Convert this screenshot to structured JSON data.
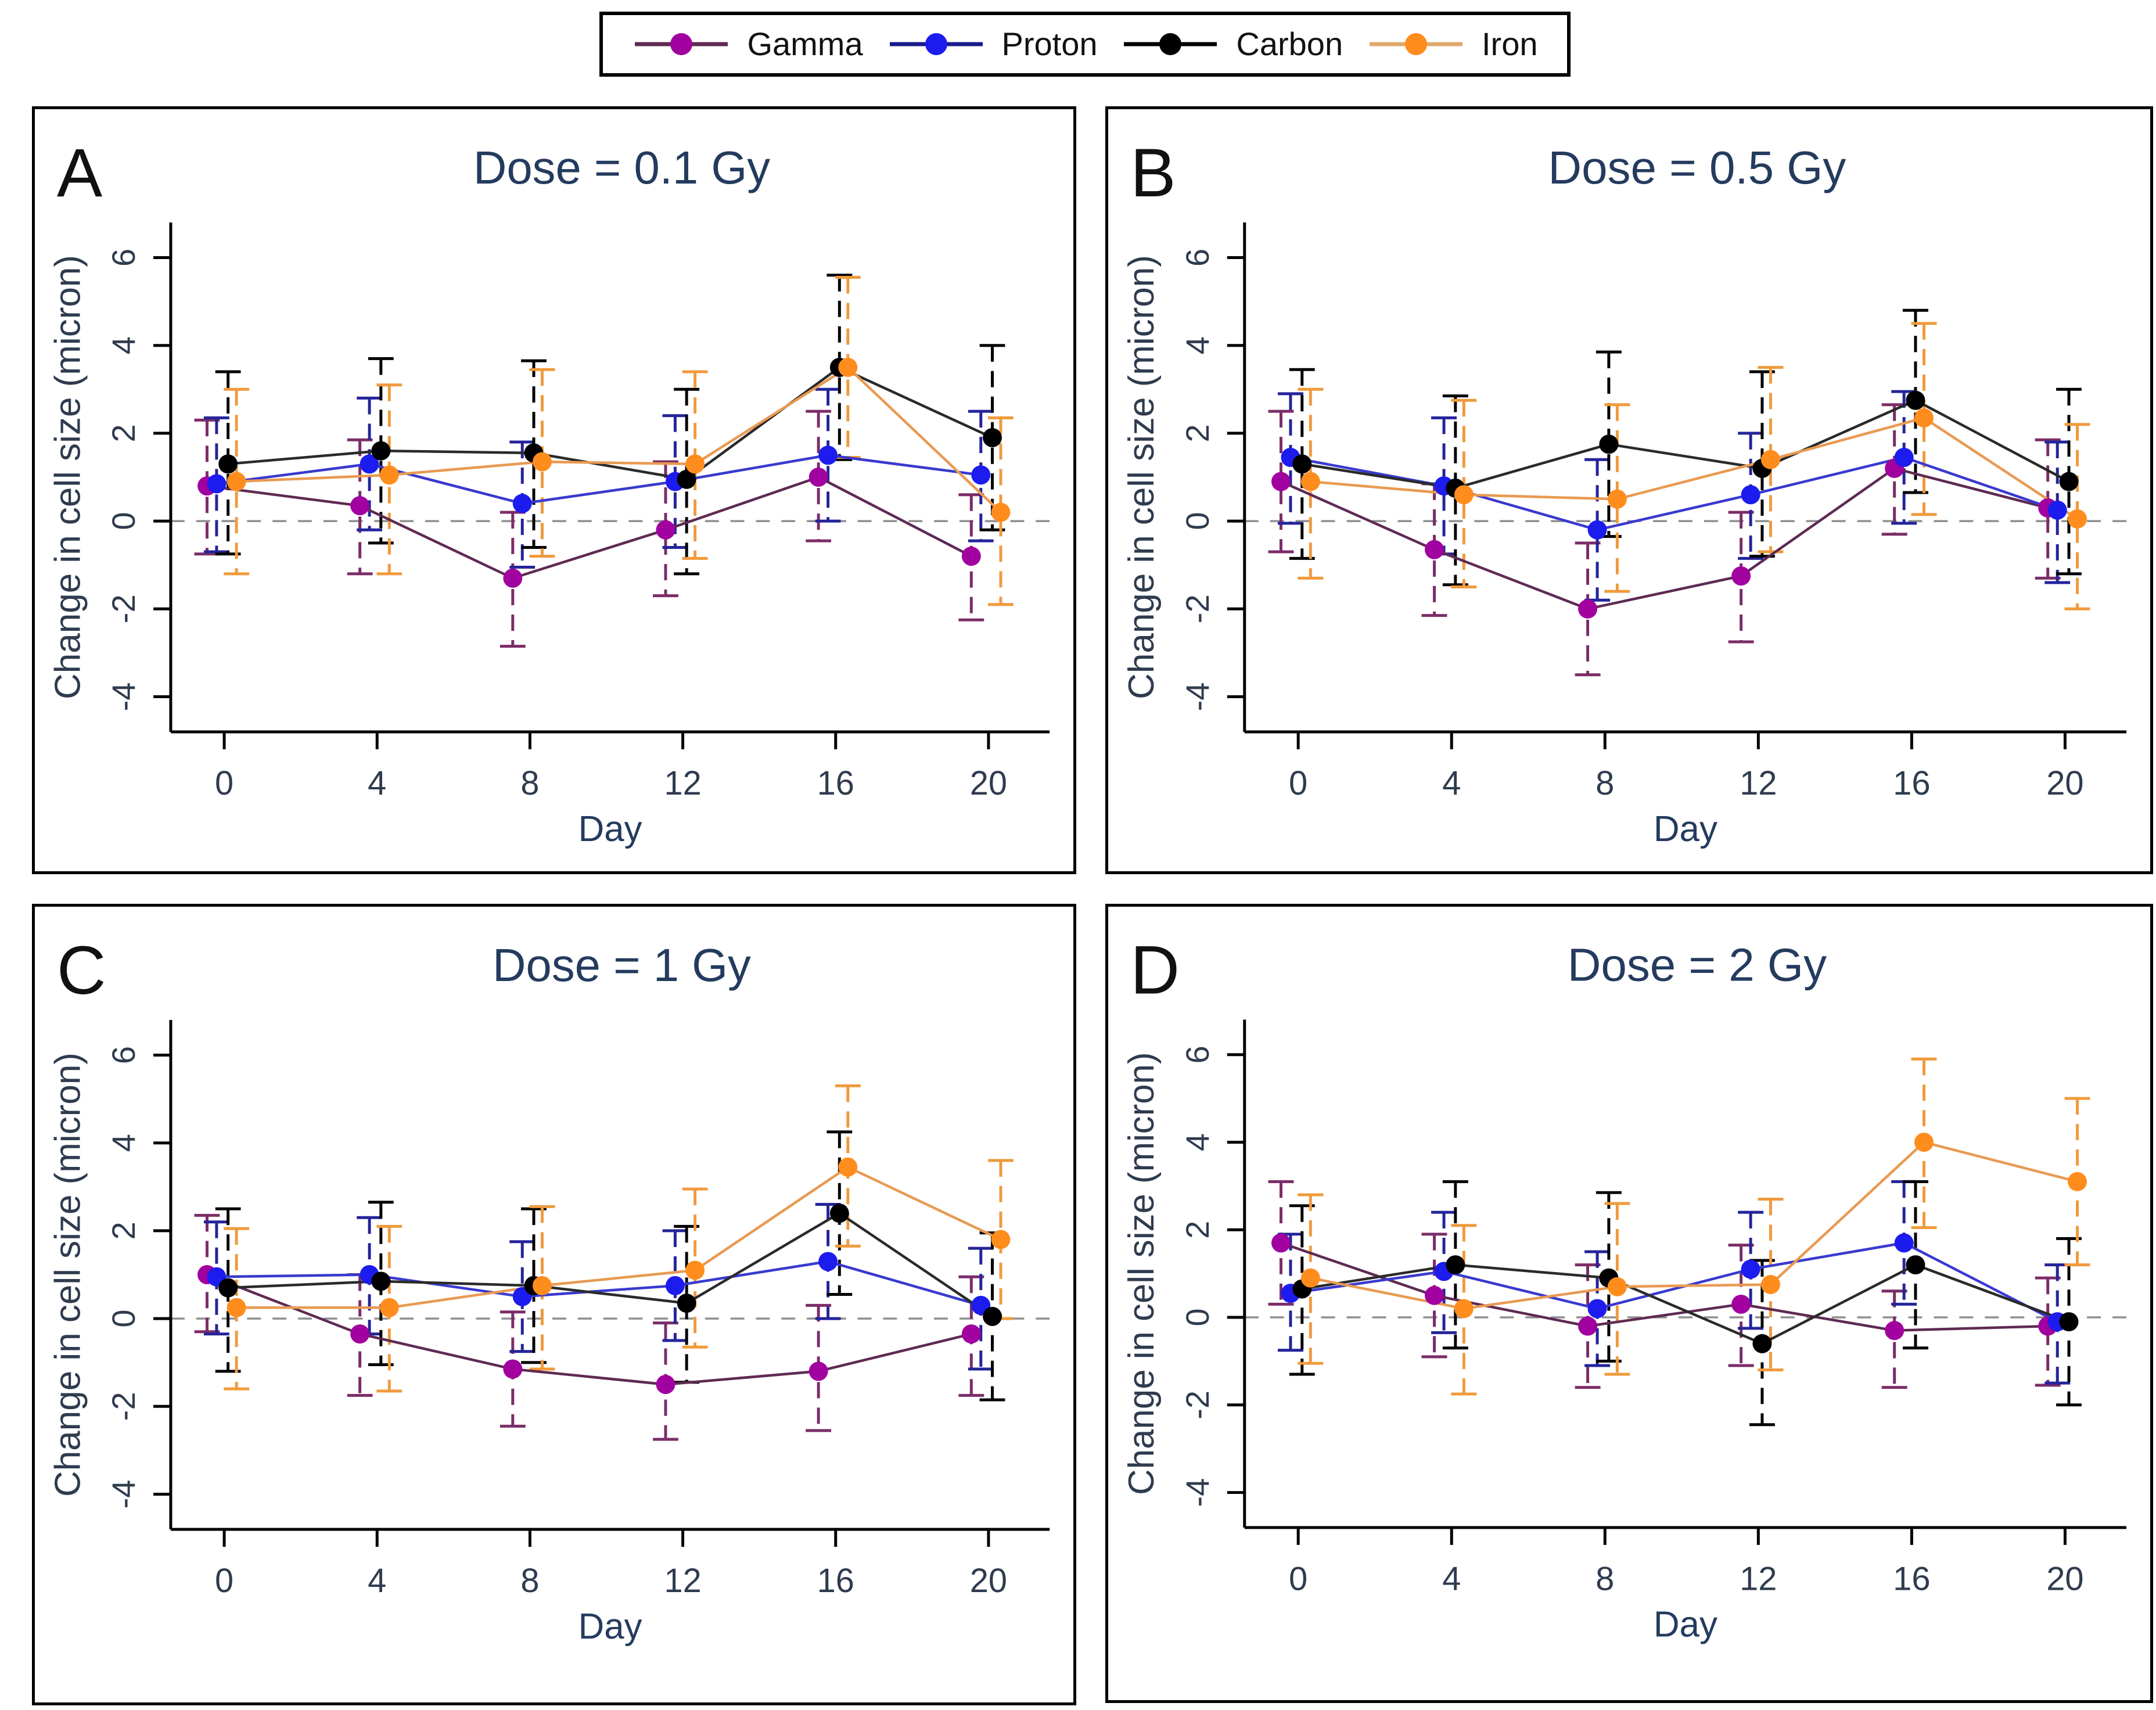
{
  "legend": {
    "items": [
      "Gamma",
      "Proton",
      "Carbon",
      "Iron"
    ]
  },
  "series_meta": [
    {
      "name": "Gamma",
      "marker_color": "#A1019E",
      "line_color": "#5E2A52",
      "error_color": "#7B2D68",
      "legend_line_color": "#5E2A52"
    },
    {
      "name": "Proton",
      "marker_color": "#1C1CEE",
      "line_color": "#3939CF",
      "error_color": "#24249B",
      "legend_line_color": "#1A1A8C"
    },
    {
      "name": "Carbon",
      "marker_color": "#000000",
      "line_color": "#2A2A2A",
      "error_color": "#000000",
      "legend_line_color": "#000000"
    },
    {
      "name": "Iron",
      "marker_color": "#FF8D1E",
      "line_color": "#E89A52",
      "error_color": "#F09A3C",
      "legend_line_color": "#E0A96D"
    }
  ],
  "style_colors": {
    "title_color": "#243B5E",
    "tick_label_color": "#2F3B4E",
    "axis_color": "#000000",
    "panel_letter_color": "#111111",
    "zero_line_color": "#8F8F8F"
  },
  "axes": {
    "xlabel": "Day",
    "ylabel": "Change  in  cell  size (micron)",
    "xticks": [
      0,
      4,
      8,
      12,
      16,
      20
    ],
    "yticks": [
      -4,
      -2,
      0,
      2,
      4,
      6
    ]
  },
  "chart_data": [
    {
      "type": "line",
      "letter": "A",
      "title": "Dose = 0.1 Gy",
      "xlabel": "Day",
      "ylabel": "Change  in  cell  size (micron)",
      "x": [
        0,
        4,
        8,
        12,
        16,
        20
      ],
      "ylim": [
        -4,
        6
      ],
      "grid": false,
      "legend_position": "top",
      "series": [
        {
          "name": "Gamma",
          "values": [
            0.8,
            0.35,
            -1.3,
            -0.2,
            1.0,
            -0.8
          ],
          "err_lo": [
            -0.75,
            -1.2,
            -2.85,
            -1.7,
            -0.45,
            -2.25
          ],
          "err_hi": [
            2.3,
            1.85,
            0.2,
            1.35,
            2.5,
            0.6
          ]
        },
        {
          "name": "Proton",
          "values": [
            0.85,
            1.3,
            0.4,
            0.9,
            1.5,
            1.05
          ],
          "err_lo": [
            -0.7,
            -0.2,
            -1.05,
            -0.6,
            0.0,
            -0.45
          ],
          "err_hi": [
            2.35,
            2.8,
            1.8,
            2.4,
            3.0,
            2.5
          ]
        },
        {
          "name": "Carbon",
          "values": [
            1.3,
            1.6,
            1.55,
            0.95,
            3.5,
            1.9
          ],
          "err_lo": [
            -0.75,
            -0.5,
            -0.6,
            -1.2,
            1.4,
            -0.2
          ],
          "err_hi": [
            3.4,
            3.7,
            3.65,
            3.0,
            5.6,
            4.0
          ]
        },
        {
          "name": "Iron",
          "values": [
            0.9,
            1.05,
            1.35,
            1.3,
            3.5,
            0.2
          ],
          "err_lo": [
            -1.2,
            -1.2,
            -0.8,
            -0.85,
            1.45,
            -1.9
          ],
          "err_hi": [
            3.0,
            3.1,
            3.45,
            3.4,
            5.55,
            2.35
          ]
        }
      ]
    },
    {
      "type": "line",
      "letter": "B",
      "title": "Dose = 0.5 Gy",
      "xlabel": "Day",
      "ylabel": "Change  in  cell  size (micron)",
      "x": [
        0,
        4,
        8,
        12,
        16,
        20
      ],
      "ylim": [
        -4,
        6
      ],
      "grid": false,
      "legend_position": "top",
      "series": [
        {
          "name": "Gamma",
          "values": [
            0.9,
            -0.65,
            -2.0,
            -1.25,
            1.2,
            0.3
          ],
          "err_lo": [
            -0.7,
            -2.15,
            -3.5,
            -2.75,
            -0.3,
            -1.3
          ],
          "err_hi": [
            2.5,
            0.85,
            -0.5,
            0.2,
            2.65,
            1.85
          ]
        },
        {
          "name": "Proton",
          "values": [
            1.45,
            0.8,
            -0.2,
            0.6,
            1.45,
            0.25
          ],
          "err_lo": [
            -0.05,
            -0.75,
            -1.8,
            -0.85,
            -0.05,
            -1.4
          ],
          "err_hi": [
            2.9,
            2.35,
            1.4,
            2.0,
            2.95,
            1.8
          ]
        },
        {
          "name": "Carbon",
          "values": [
            1.3,
            0.75,
            1.75,
            1.2,
            2.75,
            0.9
          ],
          "err_lo": [
            -0.85,
            -1.45,
            -0.35,
            -0.8,
            0.65,
            -1.2
          ],
          "err_hi": [
            3.45,
            2.85,
            3.85,
            3.4,
            4.8,
            3.0
          ]
        },
        {
          "name": "Iron",
          "values": [
            0.9,
            0.6,
            0.5,
            1.4,
            2.35,
            0.05
          ],
          "err_lo": [
            -1.3,
            -1.5,
            -1.6,
            -0.7,
            0.15,
            -2.0
          ],
          "err_hi": [
            3.0,
            2.75,
            2.65,
            3.5,
            4.5,
            2.2
          ]
        }
      ]
    },
    {
      "type": "line",
      "letter": "C",
      "title": "Dose = 1 Gy",
      "xlabel": "Day",
      "ylabel": "Change  in  cell  size (micron)",
      "x": [
        0,
        4,
        8,
        12,
        16,
        20
      ],
      "ylim": [
        -4,
        6
      ],
      "grid": false,
      "legend_position": "top",
      "series": [
        {
          "name": "Gamma",
          "values": [
            1.0,
            -0.35,
            -1.15,
            -1.5,
            -1.2,
            -0.35
          ],
          "err_lo": [
            -0.3,
            -1.75,
            -2.45,
            -2.75,
            -2.55,
            -1.75
          ],
          "err_hi": [
            2.35,
            1.0,
            0.15,
            -0.1,
            0.3,
            0.95
          ]
        },
        {
          "name": "Proton",
          "values": [
            0.95,
            1.0,
            0.5,
            0.75,
            1.3,
            0.3
          ],
          "err_lo": [
            -0.35,
            -0.35,
            -0.75,
            -0.5,
            0.0,
            -1.15
          ],
          "err_hi": [
            2.2,
            2.3,
            1.75,
            2.0,
            2.6,
            1.6
          ]
        },
        {
          "name": "Carbon",
          "values": [
            0.7,
            0.85,
            0.75,
            0.35,
            2.4,
            0.05
          ],
          "err_lo": [
            -1.2,
            -1.05,
            -1.0,
            -1.45,
            0.55,
            -1.85
          ],
          "err_hi": [
            2.5,
            2.65,
            2.5,
            2.1,
            4.25,
            1.95
          ]
        },
        {
          "name": "Iron",
          "values": [
            0.25,
            0.25,
            0.75,
            1.1,
            3.45,
            1.8
          ],
          "err_lo": [
            -1.6,
            -1.65,
            -1.15,
            -0.65,
            1.65,
            0.0
          ],
          "err_hi": [
            2.05,
            2.1,
            2.55,
            2.95,
            5.3,
            3.6
          ]
        }
      ]
    },
    {
      "type": "line",
      "letter": "D",
      "title": "Dose = 2 Gy",
      "xlabel": "Day",
      "ylabel": "Change  in  cell  size (micron)",
      "x": [
        0,
        4,
        8,
        12,
        16,
        20
      ],
      "ylim": [
        -4,
        6
      ],
      "grid": false,
      "legend_position": "top",
      "series": [
        {
          "name": "Gamma",
          "values": [
            1.7,
            0.5,
            -0.2,
            0.3,
            -0.3,
            -0.2
          ],
          "err_lo": [
            0.3,
            -0.9,
            -1.6,
            -1.1,
            -1.6,
            -1.55
          ],
          "err_hi": [
            3.1,
            1.9,
            1.2,
            1.65,
            0.6,
            0.9
          ]
        },
        {
          "name": "Proton",
          "values": [
            0.55,
            1.05,
            0.2,
            1.1,
            1.7,
            -0.1
          ],
          "err_lo": [
            -0.75,
            -0.35,
            -1.1,
            -0.25,
            0.3,
            -1.5
          ],
          "err_hi": [
            1.9,
            2.4,
            1.5,
            2.4,
            3.1,
            1.2
          ]
        },
        {
          "name": "Carbon",
          "values": [
            0.65,
            1.2,
            0.9,
            -0.6,
            1.2,
            -0.1
          ],
          "err_lo": [
            -1.3,
            -0.7,
            -1.0,
            -2.45,
            -0.7,
            -2.0
          ],
          "err_hi": [
            2.55,
            3.1,
            2.85,
            1.3,
            3.1,
            1.8
          ]
        },
        {
          "name": "Iron",
          "values": [
            0.9,
            0.2,
            0.7,
            0.75,
            4.0,
            3.1
          ],
          "err_lo": [
            -1.05,
            -1.75,
            -1.3,
            -1.2,
            2.05,
            1.2
          ],
          "err_hi": [
            2.8,
            2.1,
            2.6,
            2.7,
            5.9,
            5.0
          ]
        }
      ]
    }
  ]
}
